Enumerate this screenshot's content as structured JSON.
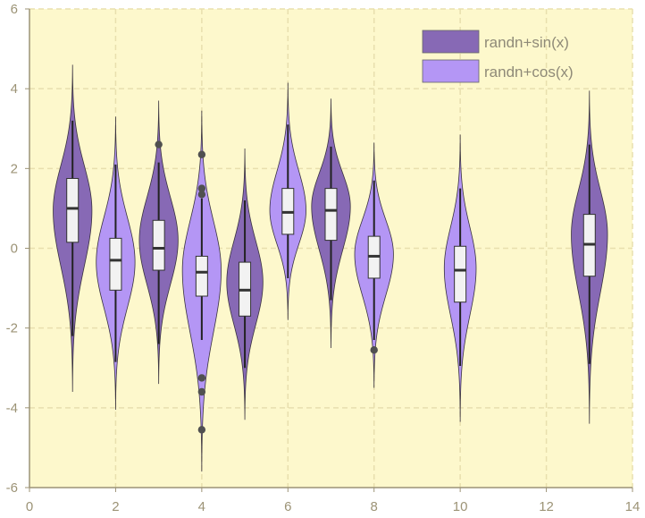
{
  "chart_data": {
    "type": "violin",
    "title": "",
    "xlabel": "",
    "ylabel": "",
    "xlim": [
      0,
      14
    ],
    "ylim": [
      -6,
      6
    ],
    "xticks": [
      0,
      2,
      4,
      6,
      8,
      10,
      12,
      14
    ],
    "yticks": [
      -6,
      -4,
      -2,
      0,
      2,
      4,
      6
    ],
    "xtick_labels": [
      "0",
      "2",
      "4",
      "6",
      "8",
      "10",
      "12",
      "14"
    ],
    "ytick_labels": [
      "-6",
      "-4",
      "-2",
      "0",
      "2",
      "4",
      "6"
    ],
    "grid": true,
    "legend_position": "top-right",
    "background_color": "#fdf8cc",
    "series": [
      {
        "name": "randn+sin(x)",
        "color": "#8769b5",
        "violins": [
          {
            "x": 1,
            "min": -3.6,
            "max": 4.6,
            "whisker_low": -2.2,
            "whisker_high": 3.2,
            "q1": 0.15,
            "median": 1.0,
            "q3": 1.75,
            "mode": 0.95,
            "max_halfwidth": 0.45,
            "outliers": []
          },
          {
            "x": 3,
            "min": -3.4,
            "max": 3.7,
            "whisker_low": -2.4,
            "whisker_high": 2.15,
            "q1": -0.55,
            "median": 0.0,
            "q3": 0.7,
            "mode": 0.2,
            "max_halfwidth": 0.45,
            "outliers": [
              2.6
            ]
          },
          {
            "x": 5,
            "min": -4.3,
            "max": 2.5,
            "whisker_low": -3.0,
            "whisker_high": 1.2,
            "q1": -1.7,
            "median": -1.05,
            "q3": -0.35,
            "mode": -0.85,
            "max_halfwidth": 0.42,
            "outliers": []
          },
          {
            "x": 7,
            "min": -2.5,
            "max": 3.75,
            "whisker_low": -1.3,
            "whisker_high": 2.55,
            "q1": 0.2,
            "median": 0.95,
            "q3": 1.5,
            "mode": 1.05,
            "max_halfwidth": 0.45,
            "outliers": []
          },
          {
            "x": 13,
            "min": -4.4,
            "max": 3.95,
            "whisker_low": -2.9,
            "whisker_high": 2.6,
            "q1": -0.7,
            "median": 0.1,
            "q3": 0.85,
            "mode": 0.35,
            "max_halfwidth": 0.42,
            "outliers": []
          }
        ]
      },
      {
        "name": "randn+cos(x)",
        "color": "#b496f5",
        "violins": [
          {
            "x": 2,
            "min": -4.05,
            "max": 3.3,
            "whisker_low": -2.85,
            "whisker_high": 2.1,
            "q1": -1.05,
            "median": -0.3,
            "q3": 0.25,
            "mode": -0.35,
            "max_halfwidth": 0.45,
            "outliers": []
          },
          {
            "x": 4,
            "min": -5.6,
            "max": 3.45,
            "whisker_low": -2.3,
            "whisker_high": 1.25,
            "q1": -1.2,
            "median": -0.6,
            "q3": -0.2,
            "mode": -0.55,
            "max_halfwidth": 0.45,
            "outliers": [
              2.35,
              1.5,
              1.35,
              -3.25,
              -3.6,
              -4.55
            ]
          },
          {
            "x": 6,
            "min": -1.8,
            "max": 4.15,
            "whisker_low": -0.75,
            "whisker_high": 3.1,
            "q1": 0.35,
            "median": 0.9,
            "q3": 1.5,
            "mode": 0.95,
            "max_halfwidth": 0.42,
            "outliers": []
          },
          {
            "x": 8,
            "min": -3.5,
            "max": 2.65,
            "whisker_low": -2.3,
            "whisker_high": 1.7,
            "q1": -0.75,
            "median": -0.2,
            "q3": 0.3,
            "mode": -0.15,
            "max_halfwidth": 0.45,
            "outliers": [
              -2.55
            ]
          },
          {
            "x": 10,
            "min": -4.35,
            "max": 2.85,
            "whisker_low": -2.95,
            "whisker_high": 1.5,
            "q1": -1.35,
            "median": -0.55,
            "q3": 0.05,
            "mode": -0.5,
            "max_halfwidth": 0.37,
            "outliers": []
          }
        ]
      }
    ]
  }
}
